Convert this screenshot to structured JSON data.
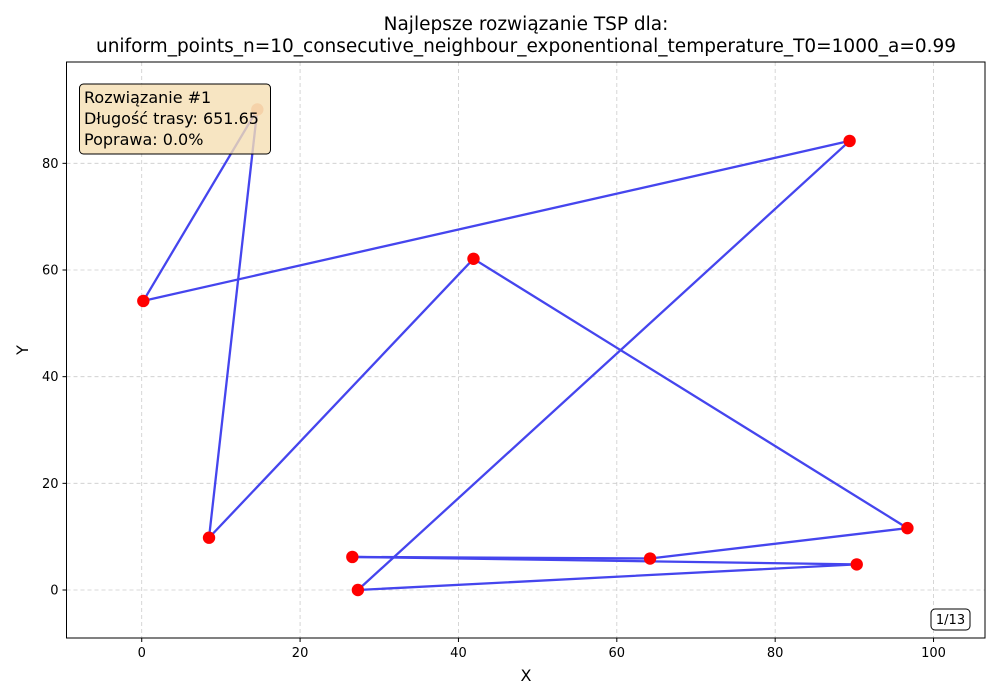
{
  "chart_data": {
    "type": "scatter",
    "title_line1": "Najlepsze rozwiązanie TSP dla:",
    "title_line2": "uniform_points_n=10_consecutive_neighbour_exponentional_temperature_T0=1000_a=0.99",
    "xlabel": "X",
    "ylabel": "Y",
    "xlim": [
      -9.5,
      106.5
    ],
    "ylim": [
      -9,
      99
    ],
    "xticks": [
      0,
      20,
      40,
      60,
      80,
      100
    ],
    "yticks": [
      0,
      20,
      40,
      60,
      80
    ],
    "grid": true,
    "route": [
      {
        "x": 14.6,
        "y": 90.1
      },
      {
        "x": 0.2,
        "y": 54.2
      },
      {
        "x": 89.4,
        "y": 84.2
      },
      {
        "x": 27.3,
        "y": 0.0
      },
      {
        "x": 90.3,
        "y": 4.8
      },
      {
        "x": 26.6,
        "y": 6.2
      },
      {
        "x": 64.2,
        "y": 5.9
      },
      {
        "x": 96.7,
        "y": 11.6
      },
      {
        "x": 41.9,
        "y": 62.1
      },
      {
        "x": 8.5,
        "y": 9.8
      }
    ],
    "route_color": "#4545ee",
    "point_color": "#ff0000",
    "start_point_color": "#f5a080"
  },
  "info_box": {
    "line1": "Rozwiązanie #1",
    "line2": "Długość trasy: 651.65",
    "line3": "Poprawa: 0.0%",
    "background": "#f5deb3"
  },
  "counter": "1/13"
}
